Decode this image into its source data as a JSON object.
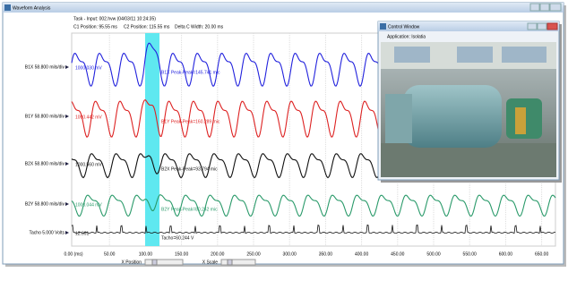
{
  "window": {
    "title": "Waveform Analysis"
  },
  "header": {
    "task": "Task - Input: 002.hvw (04/03/11 10:24:35)",
    "c1": "C1 Position: 95.55 ms",
    "c2": "C2 Position: 115.55 ms",
    "delta": "Delta C Width: 20.00 ms"
  },
  "channels": [
    {
      "label": "B1X 58.800 mils/div",
      "marker": "1000.030 mV",
      "peak": "B1X Peak-Peak=145.741 mic"
    },
    {
      "label": "B1Y 58.800 mils/div",
      "marker": "1000.442 mV",
      "peak": "B1Y Peak-Peak=160.289 mic"
    },
    {
      "label": "B2X 58.800 mils/div",
      "marker": "1000.560 mV",
      "peak": "B2X Peak-Peak=93.794 mic"
    },
    {
      "label": "B2Y 58.800 mils/div",
      "marker": "1000.044 mV",
      "peak": "B2Y Peak-Peak=80.242 mic"
    },
    {
      "label": "Tacho 5.000 Volts",
      "marker": "12.991",
      "peak": "Tacho=60.244 V"
    }
  ],
  "x_axis": {
    "labels": [
      "0.00 (ms)",
      "50.00",
      "100.00",
      "150.00",
      "200.00",
      "250.00",
      "300.00",
      "350.00",
      "400.00",
      "450.00",
      "500.00",
      "550.00",
      "600.00",
      "650.00"
    ]
  },
  "controls": {
    "x_position": "X Position",
    "x_scale": "X Scale"
  },
  "control_window": {
    "title": "Control Window",
    "application": "Application: Isolatia"
  }
}
